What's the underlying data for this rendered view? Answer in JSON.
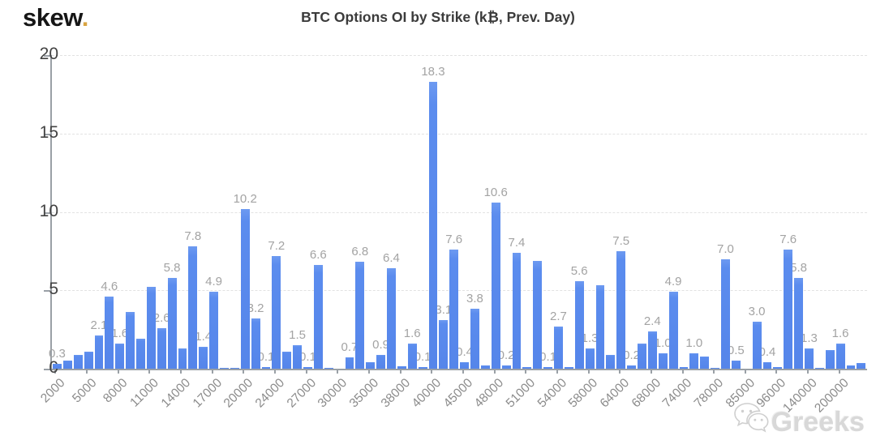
{
  "logo": {
    "text": "skew",
    "dot": "."
  },
  "watermark": {
    "text": "Greeks",
    "icon": "wechat-icon"
  },
  "chart_data": {
    "type": "bar",
    "title": "BTC Options OI by Strike (k₿, Prev. Day)",
    "xlabel": "",
    "ylabel": "",
    "ylim": [
      0,
      20
    ],
    "yticks": [
      0,
      5,
      10,
      15,
      20
    ],
    "grid": "dashed horizontal",
    "legend": "none",
    "bar_color": "#5b8cee",
    "data_label_color": "#a3a3a3",
    "x_tick_labels": [
      "2000",
      "5000",
      "8000",
      "11000",
      "14000",
      "17000",
      "20000",
      "24000",
      "27000",
      "30000",
      "35000",
      "38000",
      "40000",
      "45000",
      "48000",
      "51000",
      "54000",
      "58000",
      "64000",
      "68000",
      "74000",
      "78000",
      "85000",
      "96000",
      "140000",
      "200000"
    ],
    "ticks_every_n_bars": 3,
    "bars": [
      {
        "value": 0.3,
        "label": "0.3"
      },
      {
        "value": 0.5
      },
      {
        "value": 0.9
      },
      {
        "value": 1.1
      },
      {
        "value": 2.1,
        "label": "2.1"
      },
      {
        "value": 4.6,
        "label": "4.6"
      },
      {
        "value": 1.6,
        "label": "1.6"
      },
      {
        "value": 3.6
      },
      {
        "value": 1.9
      },
      {
        "value": 5.2
      },
      {
        "value": 2.6,
        "label": "2.6"
      },
      {
        "value": 5.8,
        "label": "5.8"
      },
      {
        "value": 1.3
      },
      {
        "value": 7.8,
        "label": "7.8"
      },
      {
        "value": 1.4,
        "label": "1.4"
      },
      {
        "value": 4.9,
        "label": "4.9"
      },
      {
        "value": 0.05
      },
      {
        "value": 0.05
      },
      {
        "value": 10.2,
        "label": "10.2"
      },
      {
        "value": 3.2,
        "label": "3.2"
      },
      {
        "value": 0.1,
        "label": "0.1"
      },
      {
        "value": 7.2,
        "label": "7.2"
      },
      {
        "value": 1.1
      },
      {
        "value": 1.5,
        "label": "1.5"
      },
      {
        "value": 0.1,
        "label": "0.1"
      },
      {
        "value": 6.6,
        "label": "6.6"
      },
      {
        "value": 0.05
      },
      {
        "value": 0.0
      },
      {
        "value": 0.7,
        "label": "0.7"
      },
      {
        "value": 6.8,
        "label": "6.8"
      },
      {
        "value": 0.4
      },
      {
        "value": 0.9,
        "label": "0.9"
      },
      {
        "value": 6.4,
        "label": "6.4"
      },
      {
        "value": 0.15
      },
      {
        "value": 1.6,
        "label": "1.6"
      },
      {
        "value": 0.1,
        "label": "0.1"
      },
      {
        "value": 18.3,
        "label": "18.3"
      },
      {
        "value": 3.1,
        "label": "3.1"
      },
      {
        "value": 7.6,
        "label": "7.6"
      },
      {
        "value": 0.4,
        "label": "0.4"
      },
      {
        "value": 3.8,
        "label": "3.8"
      },
      {
        "value": 0.2
      },
      {
        "value": 10.6,
        "label": "10.6"
      },
      {
        "value": 0.2,
        "label": "0.2"
      },
      {
        "value": 7.4,
        "label": "7.4"
      },
      {
        "value": 0.1
      },
      {
        "value": 6.9
      },
      {
        "value": 0.1,
        "label": "0.1"
      },
      {
        "value": 2.7,
        "label": "2.7"
      },
      {
        "value": 0.1
      },
      {
        "value": 5.6,
        "label": "5.6"
      },
      {
        "value": 1.3,
        "label": "1.3"
      },
      {
        "value": 5.3
      },
      {
        "value": 0.9
      },
      {
        "value": 7.5,
        "label": "7.5"
      },
      {
        "value": 0.2,
        "label": "0.2"
      },
      {
        "value": 1.6
      },
      {
        "value": 2.4,
        "label": "2.4"
      },
      {
        "value": 1.0,
        "label": "1.0"
      },
      {
        "value": 4.9,
        "label": "4.9"
      },
      {
        "value": 0.1
      },
      {
        "value": 1.0,
        "label": "1.0"
      },
      {
        "value": 0.8
      },
      {
        "value": 0.05
      },
      {
        "value": 7.0,
        "label": "7.0"
      },
      {
        "value": 0.5,
        "label": "0.5"
      },
      {
        "value": 0.0
      },
      {
        "value": 3.0,
        "label": "3.0"
      },
      {
        "value": 0.4,
        "label": "0.4"
      },
      {
        "value": 0.1
      },
      {
        "value": 7.6,
        "label": "7.6"
      },
      {
        "value": 5.8,
        "label": "5.8"
      },
      {
        "value": 1.3,
        "label": "1.3"
      },
      {
        "value": 0.05
      },
      {
        "value": 1.2
      },
      {
        "value": 1.6,
        "label": "1.6"
      },
      {
        "value": 0.2
      },
      {
        "value": 0.35
      }
    ]
  }
}
